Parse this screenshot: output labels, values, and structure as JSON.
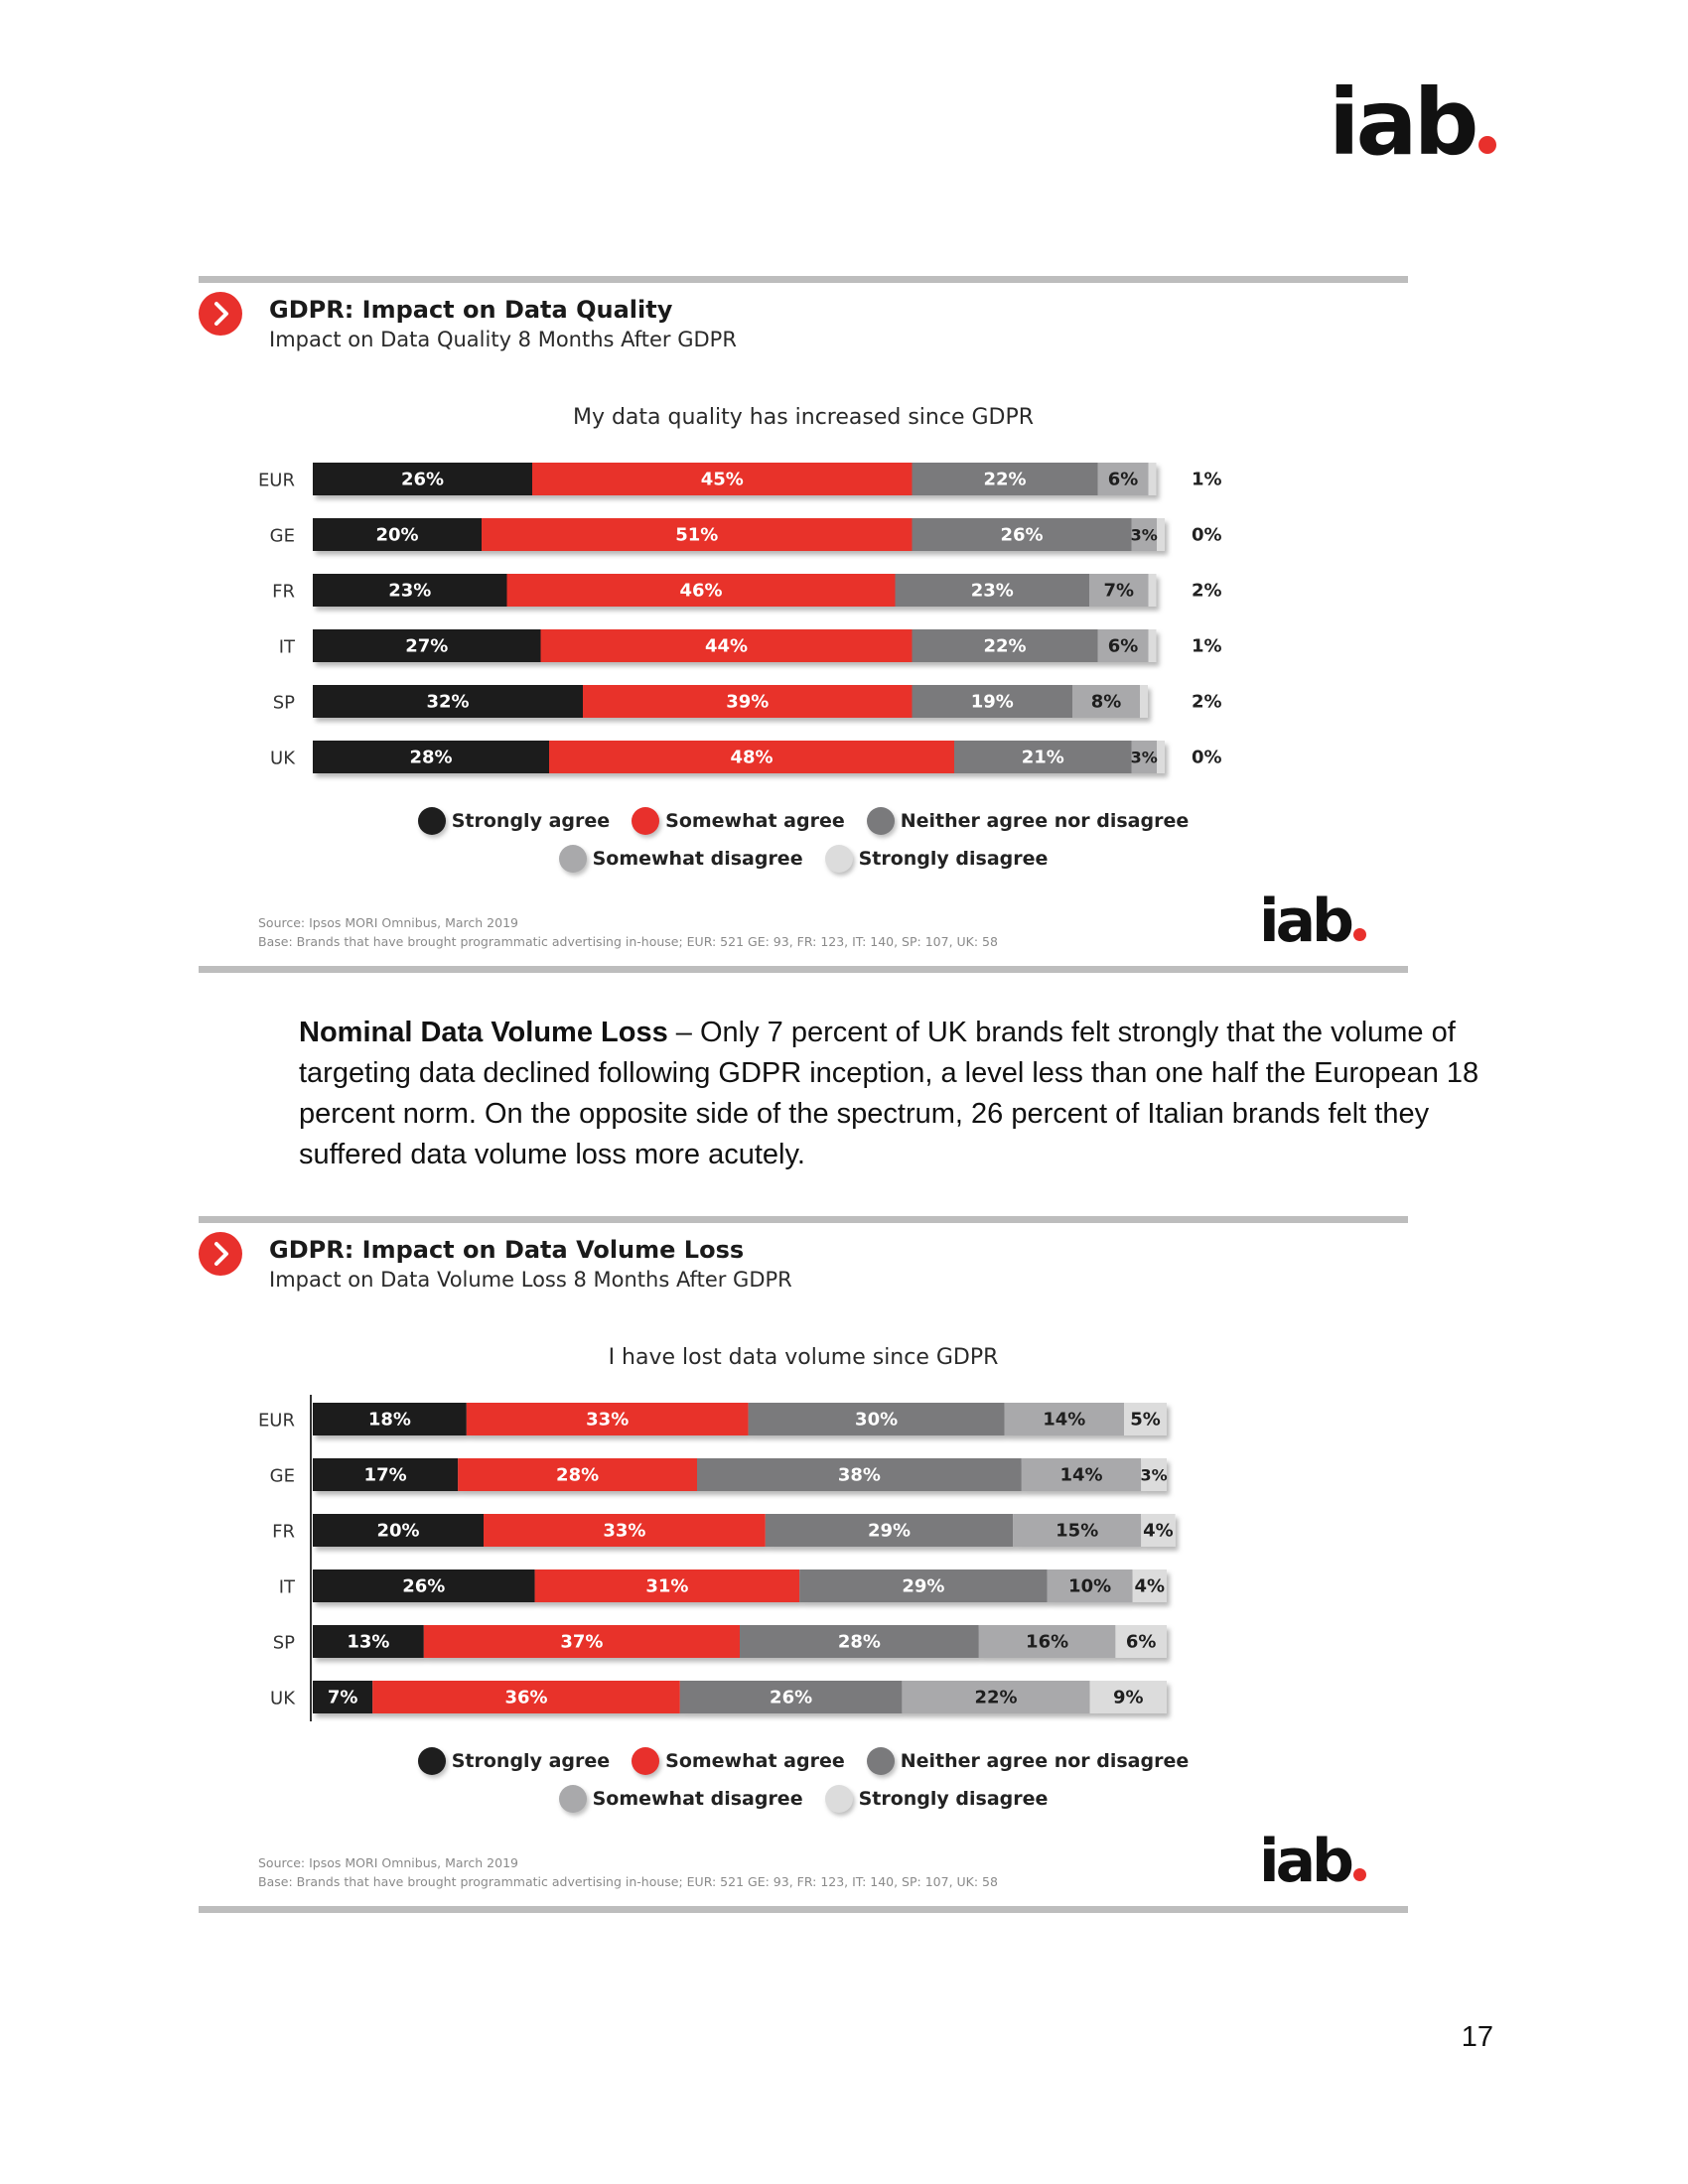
{
  "header": {
    "logo_text": "iab"
  },
  "colors": {
    "strongly_agree": "#1e1e1e",
    "somewhat_agree": "#e8302c",
    "neither": "#7a7a7c",
    "somewhat_disagree": "#a9a9ab",
    "strongly_disagree": "#dcdcdc",
    "accent": "#e8302c",
    "rule": "#bdbdbd"
  },
  "legend": {
    "strongly_agree": "Strongly agree",
    "somewhat_agree": "Somewhat agree",
    "neither": "Neither agree nor disagree",
    "somewhat_disagree": "Somewhat disagree",
    "strongly_disagree": "Strongly disagree"
  },
  "panel1": {
    "title": "GDPR: Impact on Data Quality",
    "subtitle": "Impact on Data Quality 8 Months After GDPR",
    "source_line1": "Source: Ipsos MORI Omnibus, March 2019",
    "source_line2": "Base: Brands that have brought programmatic advertising in-house; EUR: 521 GE: 93, FR: 123, IT: 140, SP: 107, UK: 58",
    "logo_text": "iab"
  },
  "paragraph": {
    "lead": "Nominal Data Volume Loss",
    "text": " – Only 7 percent of UK brands felt strongly that the volume of targeting data declined following GDPR inception, a level less than one half the European 18 percent norm. On the opposite side of the spectrum, 26 percent of Italian brands felt they suffered data volume loss more acutely."
  },
  "panel2": {
    "title": "GDPR: Impact on Data Volume Loss",
    "subtitle": "Impact on Data Volume Loss 8 Months After GDPR",
    "source_line1": "Source: Ipsos MORI Omnibus, March 2019",
    "source_line2": "Base: Brands that have brought programmatic advertising in-house; EUR: 521 GE: 93, FR: 123, IT: 140, SP: 107, UK: 58",
    "logo_text": "iab"
  },
  "page_number": "17",
  "chart_data": [
    {
      "type": "bar",
      "orientation": "horizontal-stacked",
      "title": "My data quality has increased since GDPR",
      "categories": [
        "EUR",
        "GE",
        "FR",
        "IT",
        "SP",
        "UK"
      ],
      "series": [
        {
          "name": "Strongly agree",
          "values": [
            26,
            20,
            23,
            27,
            32,
            28
          ]
        },
        {
          "name": "Somewhat agree",
          "values": [
            45,
            51,
            46,
            44,
            39,
            48
          ]
        },
        {
          "name": "Neither agree nor disagree",
          "values": [
            22,
            26,
            23,
            22,
            19,
            21
          ]
        },
        {
          "name": "Somewhat disagree",
          "values": [
            6,
            3,
            7,
            6,
            8,
            3
          ]
        },
        {
          "name": "Strongly disagree",
          "values": [
            1,
            0,
            2,
            1,
            2,
            0
          ]
        }
      ],
      "value_suffix": "%",
      "strongly_disagree_label_outside": true,
      "legend_position": "bottom"
    },
    {
      "type": "bar",
      "orientation": "horizontal-stacked",
      "title": "I have lost data volume since GDPR",
      "categories": [
        "EUR",
        "GE",
        "FR",
        "IT",
        "SP",
        "UK"
      ],
      "series": [
        {
          "name": "Strongly agree",
          "values": [
            18,
            17,
            20,
            26,
            13,
            7
          ]
        },
        {
          "name": "Somewhat agree",
          "values": [
            33,
            28,
            33,
            31,
            37,
            36
          ]
        },
        {
          "name": "Neither agree nor disagree",
          "values": [
            30,
            38,
            29,
            29,
            28,
            26
          ]
        },
        {
          "name": "Somewhat disagree",
          "values": [
            14,
            14,
            15,
            10,
            16,
            22
          ]
        },
        {
          "name": "Strongly disagree",
          "values": [
            5,
            3,
            4,
            4,
            6,
            9
          ]
        }
      ],
      "value_suffix": "%",
      "strongly_disagree_label_outside": false,
      "legend_position": "bottom"
    }
  ]
}
